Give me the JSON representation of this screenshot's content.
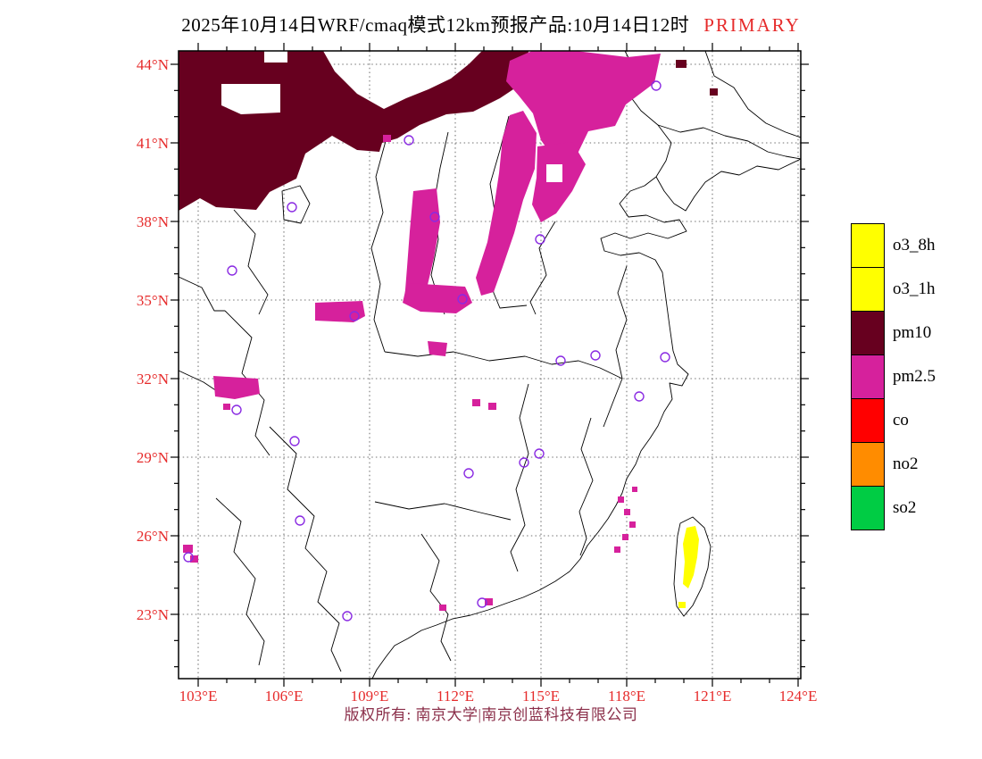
{
  "title": {
    "main": "2025年10月14日WRF/cmaq模式12km预报产品:10月14日12时",
    "highlight": "PRIMARY"
  },
  "axes": {
    "y": [
      "44°N",
      "41°N",
      "38°N",
      "35°N",
      "32°N",
      "29°N",
      "26°N",
      "23°N"
    ],
    "x": [
      "103°E",
      "106°E",
      "109°E",
      "112°E",
      "115°E",
      "118°E",
      "121°E",
      "124°E"
    ]
  },
  "legend": {
    "items": [
      {
        "label": "o3_8h",
        "color": "#ffff00"
      },
      {
        "label": "o3_1h",
        "color": "#ffff00"
      },
      {
        "label": "pm10",
        "color": "#67001f"
      },
      {
        "label": "pm2.5",
        "color": "#d6219c"
      },
      {
        "label": "co",
        "color": "#ff0000"
      },
      {
        "label": "no2",
        "color": "#ff8c00"
      },
      {
        "label": "so2",
        "color": "#00cc44"
      }
    ],
    "colors": {
      "o3": "#ffff00",
      "pm10": "#67001f",
      "pm25": "#d6219c",
      "station": "#8a2be2",
      "axis_label": "#e62b2b",
      "copyright_text": "#8b2f4a"
    }
  },
  "footer": {
    "copyright": "版权所有: 南京大学|南京创蓝科技有限公司"
  }
}
